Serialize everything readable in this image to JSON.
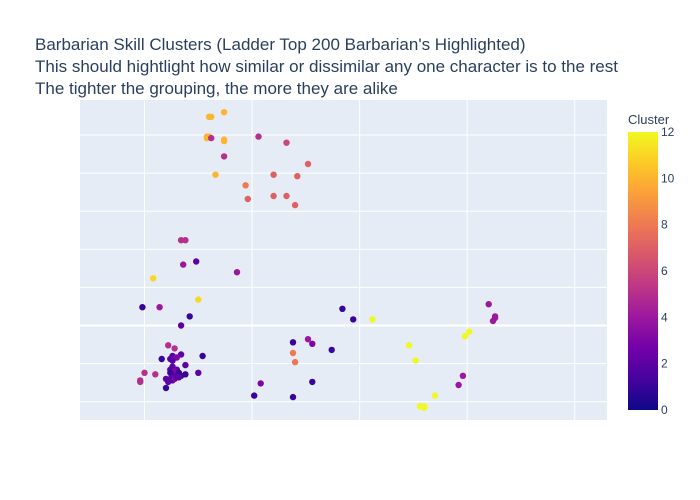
{
  "chart_data": {
    "type": "scatter",
    "title_lines": [
      "Barbarian Skill Clusters (Ladder Top 200 Barbarian's Highlighted)",
      "This should hightlight how similar or dissimilar any one character is to the rest",
      "The tighter the grouping, the more they are alike"
    ],
    "xlabel": "",
    "ylabel": "",
    "xlim": [
      -0.3,
      2.15
    ],
    "ylim": [
      -0.62,
      1.48
    ],
    "grid": true,
    "colorbar": {
      "title": "Cluster",
      "range": [
        0,
        12
      ],
      "ticks": [
        0,
        2,
        4,
        6,
        8,
        10,
        12
      ],
      "colorscale": [
        "#0d0887",
        "#46039f",
        "#7201a8",
        "#9c179e",
        "#bd3786",
        "#d8576b",
        "#ed7953",
        "#fb9f3a",
        "#fdca26",
        "#f0f921"
      ]
    },
    "points": [
      {
        "x": 0.37,
        "y": 1.4,
        "c": 10
      },
      {
        "x": 0.3,
        "y": 1.37,
        "c": 10
      },
      {
        "x": 0.31,
        "y": 1.37,
        "c": 10
      },
      {
        "x": 0.3,
        "y": 1.24,
        "c": 10
      },
      {
        "x": 0.29,
        "y": 1.24,
        "c": 10
      },
      {
        "x": 0.29,
        "y": 1.23,
        "c": 10
      },
      {
        "x": 0.31,
        "y": 1.23,
        "c": 5
      },
      {
        "x": 0.37,
        "y": 1.21,
        "c": 10
      },
      {
        "x": 0.37,
        "y": 1.22,
        "c": 10
      },
      {
        "x": 0.53,
        "y": 1.24,
        "c": 5
      },
      {
        "x": 0.37,
        "y": 1.11,
        "c": 5
      },
      {
        "x": 0.66,
        "y": 1.2,
        "c": 6
      },
      {
        "x": 0.33,
        "y": 0.99,
        "c": 10
      },
      {
        "x": 0.76,
        "y": 1.06,
        "c": 7
      },
      {
        "x": 0.47,
        "y": 0.92,
        "c": 8
      },
      {
        "x": 0.6,
        "y": 0.99,
        "c": 7
      },
      {
        "x": 0.71,
        "y": 0.98,
        "c": 7
      },
      {
        "x": 0.48,
        "y": 0.83,
        "c": 7
      },
      {
        "x": 0.6,
        "y": 0.85,
        "c": 7
      },
      {
        "x": 0.66,
        "y": 0.85,
        "c": 7
      },
      {
        "x": 0.7,
        "y": 0.79,
        "c": 7
      },
      {
        "x": 0.17,
        "y": 0.56,
        "c": 5
      },
      {
        "x": 0.19,
        "y": 0.56,
        "c": 5
      },
      {
        "x": 0.18,
        "y": 0.4,
        "c": 4
      },
      {
        "x": 0.24,
        "y": 0.42,
        "c": 2
      },
      {
        "x": 0.43,
        "y": 0.35,
        "c": 4
      },
      {
        "x": 0.04,
        "y": 0.31,
        "c": 11
      },
      {
        "x": 0.25,
        "y": 0.17,
        "c": 11
      },
      {
        "x": 0.07,
        "y": 0.12,
        "c": 4
      },
      {
        "x": -0.01,
        "y": 0.12,
        "c": 1
      },
      {
        "x": 0.21,
        "y": 0.06,
        "c": 1
      },
      {
        "x": 0.17,
        "y": 0.0,
        "c": 2
      },
      {
        "x": 0.11,
        "y": -0.13,
        "c": 5
      },
      {
        "x": 0.14,
        "y": -0.15,
        "c": 5
      },
      {
        "x": 0.13,
        "y": -0.2,
        "c": 2
      },
      {
        "x": 0.17,
        "y": -0.19,
        "c": 2
      },
      {
        "x": 0.15,
        "y": -0.21,
        "c": 3
      },
      {
        "x": 0.27,
        "y": -0.2,
        "c": 1
      },
      {
        "x": 0.08,
        "y": -0.22,
        "c": 1
      },
      {
        "x": 0.12,
        "y": -0.22,
        "c": 2
      },
      {
        "x": 0.13,
        "y": -0.23,
        "c": 2
      },
      {
        "x": 0.19,
        "y": -0.26,
        "c": 2
      },
      {
        "x": 0.13,
        "y": -0.27,
        "c": 2
      },
      {
        "x": 0.12,
        "y": -0.29,
        "c": 2
      },
      {
        "x": 0.15,
        "y": -0.29,
        "c": 2
      },
      {
        "x": 0.14,
        "y": -0.3,
        "c": 3
      },
      {
        "x": 0.16,
        "y": -0.31,
        "c": 1
      },
      {
        "x": 0.19,
        "y": -0.32,
        "c": 1
      },
      {
        "x": 0.25,
        "y": -0.31,
        "c": 2
      },
      {
        "x": 0.17,
        "y": -0.33,
        "c": 1
      },
      {
        "x": 0.12,
        "y": -0.31,
        "c": 1
      },
      {
        "x": 0.14,
        "y": -0.33,
        "c": 2
      },
      {
        "x": 0.1,
        "y": -0.35,
        "c": 2
      },
      {
        "x": 0.12,
        "y": -0.35,
        "c": 2
      },
      {
        "x": 0.13,
        "y": -0.36,
        "c": 2
      },
      {
        "x": 0.14,
        "y": -0.35,
        "c": 3
      },
      {
        "x": 0.15,
        "y": -0.34,
        "c": 2
      },
      {
        "x": 0.16,
        "y": -0.34,
        "c": 2
      },
      {
        "x": 0.11,
        "y": -0.37,
        "c": 2
      },
      {
        "x": 0.0,
        "y": -0.31,
        "c": 5
      },
      {
        "x": 0.05,
        "y": -0.32,
        "c": 5
      },
      {
        "x": -0.02,
        "y": -0.36,
        "c": 5
      },
      {
        "x": -0.02,
        "y": -0.37,
        "c": 5
      },
      {
        "x": 0.1,
        "y": -0.41,
        "c": 1
      },
      {
        "x": 0.51,
        "y": -0.46,
        "c": 1
      },
      {
        "x": 0.54,
        "y": -0.38,
        "c": 3
      },
      {
        "x": 0.69,
        "y": -0.47,
        "c": 1
      },
      {
        "x": 0.69,
        "y": -0.11,
        "c": 1
      },
      {
        "x": 0.69,
        "y": -0.18,
        "c": 8
      },
      {
        "x": 0.7,
        "y": -0.24,
        "c": 8
      },
      {
        "x": 0.76,
        "y": -0.09,
        "c": 4
      },
      {
        "x": 0.78,
        "y": -0.12,
        "c": 3
      },
      {
        "x": 0.78,
        "y": -0.37,
        "c": 1
      },
      {
        "x": 0.87,
        "y": -0.16,
        "c": 1
      },
      {
        "x": 0.92,
        "y": 0.11,
        "c": 1
      },
      {
        "x": 0.97,
        "y": 0.04,
        "c": 1
      },
      {
        "x": 1.06,
        "y": 0.04,
        "c": 12
      },
      {
        "x": 1.23,
        "y": -0.13,
        "c": 12
      },
      {
        "x": 1.26,
        "y": -0.23,
        "c": 12
      },
      {
        "x": 1.28,
        "y": -0.53,
        "c": 12
      },
      {
        "x": 1.3,
        "y": -0.53,
        "c": 12
      },
      {
        "x": 1.3,
        "y": -0.54,
        "c": 12
      },
      {
        "x": 1.35,
        "y": -0.46,
        "c": 12
      },
      {
        "x": 1.49,
        "y": -0.07,
        "c": 12
      },
      {
        "x": 1.51,
        "y": -0.04,
        "c": 12
      },
      {
        "x": 1.46,
        "y": -0.39,
        "c": 4
      },
      {
        "x": 1.48,
        "y": -0.33,
        "c": 4
      },
      {
        "x": 1.6,
        "y": 0.14,
        "c": 4
      },
      {
        "x": 1.62,
        "y": 0.03,
        "c": 4
      },
      {
        "x": 1.63,
        "y": 0.05,
        "c": 4
      },
      {
        "x": 1.63,
        "y": 0.06,
        "c": 4
      }
    ]
  }
}
